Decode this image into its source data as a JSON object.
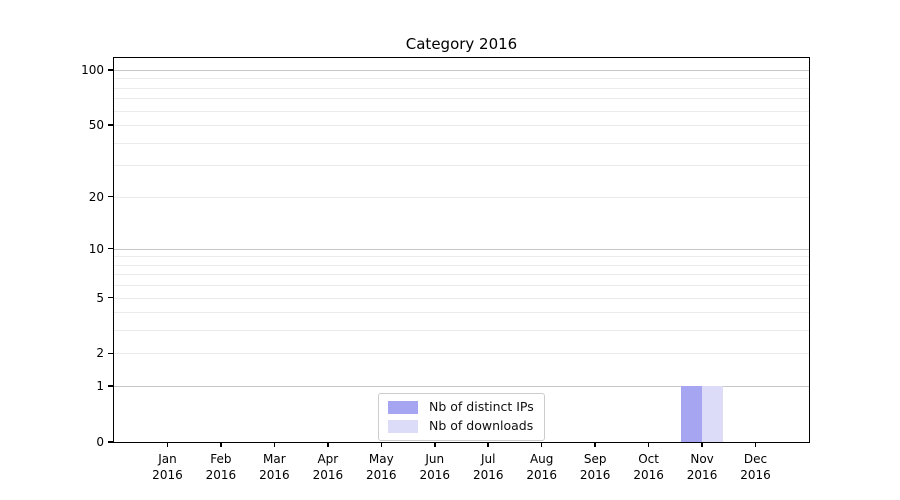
{
  "chart_data": {
    "type": "bar",
    "title": "Category 2016",
    "categories": [
      "Jan\n2016",
      "Feb\n2016",
      "Mar\n2016",
      "Apr\n2016",
      "May\n2016",
      "Jun\n2016",
      "Jul\n2016",
      "Aug\n2016",
      "Sep\n2016",
      "Oct\n2016",
      "Nov\n2016",
      "Dec\n2016"
    ],
    "series": [
      {
        "name": "Nb of distinct IPs",
        "color": "#a5a5f2",
        "values": [
          0,
          0,
          0,
          0,
          0,
          0,
          0,
          0,
          0,
          0,
          1,
          0
        ]
      },
      {
        "name": "Nb of downloads",
        "color": "#dcdcf8",
        "values": [
          0,
          0,
          0,
          0,
          0,
          0,
          0,
          0,
          0,
          0,
          1,
          0
        ]
      }
    ],
    "xlabel": "",
    "ylabel": "",
    "yscale": "log1p",
    "ylim": [
      0,
      116
    ],
    "yticks": [
      0,
      1,
      2,
      5,
      10,
      20,
      50,
      100
    ],
    "gridlines": {
      "major": [
        1,
        10,
        100
      ],
      "minor": [
        2,
        3,
        4,
        5,
        6,
        7,
        8,
        9,
        20,
        30,
        40,
        50,
        60,
        70,
        80,
        90
      ]
    },
    "grid": true,
    "legend_position": "lower center"
  },
  "style": {
    "grid_major_color": "#c6c6c6",
    "grid_minor_color": "#ececec",
    "spine_color": "#000000",
    "legend_border_color": "#cccccc",
    "background": "#ffffff"
  }
}
